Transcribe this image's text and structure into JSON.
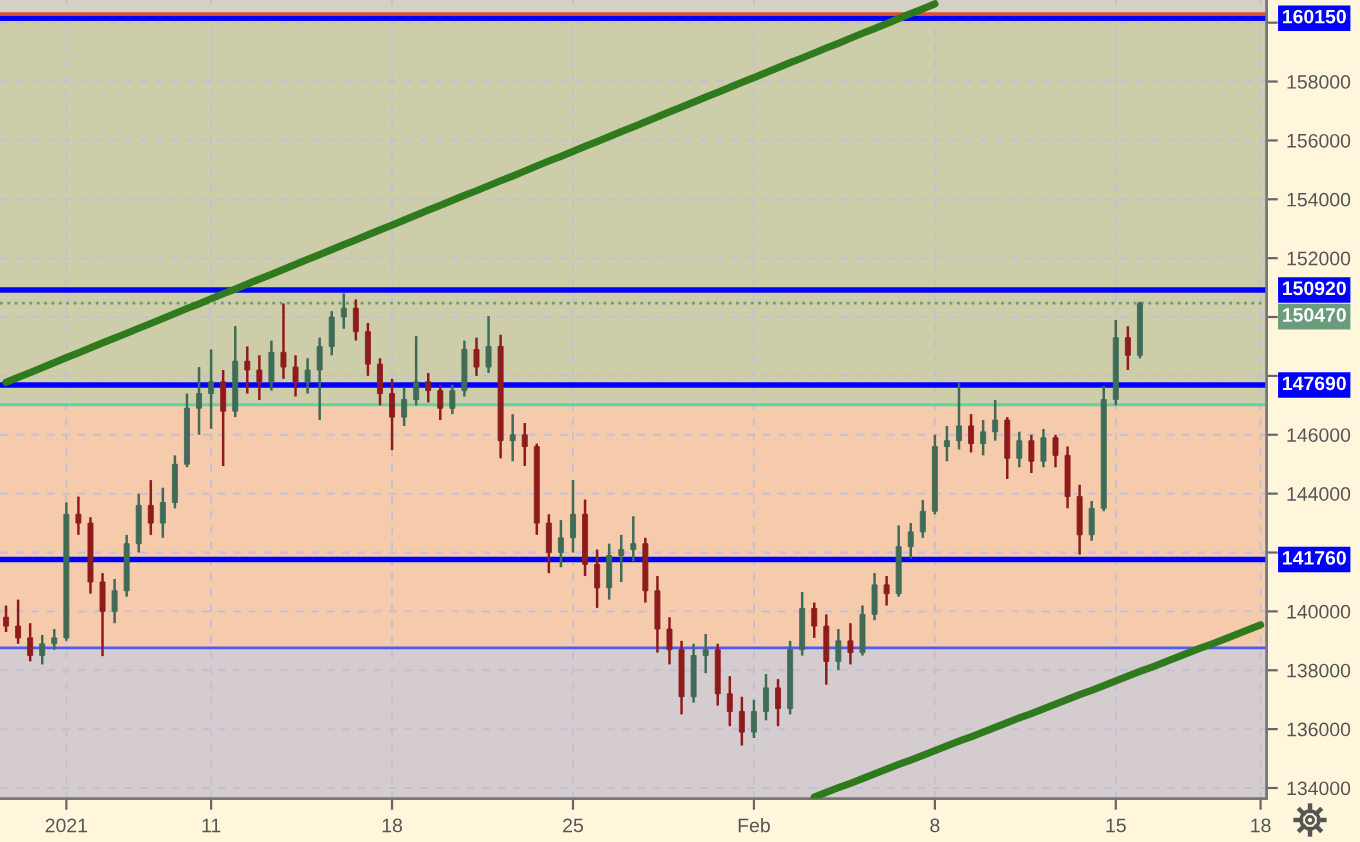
{
  "chart_data": {
    "type": "candlestick",
    "categories": [
      null,
      null,
      null,
      null,
      null,
      "2021",
      null,
      null,
      null,
      null,
      null,
      null,
      null,
      null,
      null,
      null,
      null,
      "11",
      null,
      null,
      null,
      null,
      null,
      null,
      null,
      null,
      null,
      null,
      null,
      null,
      null,
      null,
      "18",
      null,
      null,
      null,
      null,
      null,
      null,
      null,
      null,
      null,
      null,
      null,
      null,
      null,
      null,
      "25",
      null,
      null,
      null,
      null,
      null,
      null,
      null,
      null,
      null,
      null,
      null,
      null,
      null,
      null,
      "Feb",
      null,
      null,
      null,
      null,
      null,
      null,
      null,
      null,
      null,
      null,
      null,
      null,
      null,
      null,
      "8",
      null,
      null,
      null,
      null,
      null,
      null,
      null,
      null,
      null,
      null,
      null,
      null,
      null,
      null,
      "15",
      null,
      null,
      null,
      null,
      null,
      null,
      null,
      null,
      null,
      null,
      null,
      "18"
    ],
    "ohlc": [
      [
        139800,
        140200,
        139300,
        139500
      ],
      [
        139500,
        140400,
        138900,
        139100
      ],
      [
        139100,
        139600,
        138300,
        138500
      ],
      [
        138500,
        139200,
        138200,
        138900
      ],
      [
        138900,
        139400,
        138700,
        139100
      ],
      [
        139100,
        143700,
        139000,
        143300
      ],
      [
        143300,
        143900,
        142600,
        143000
      ],
      [
        143000,
        143200,
        140600,
        141000
      ],
      [
        141000,
        141300,
        138480,
        140000
      ],
      [
        140000,
        141100,
        139600,
        140700
      ],
      [
        140700,
        142600,
        140500,
        142300
      ],
      [
        142300,
        144000,
        142000,
        143600
      ],
      [
        143600,
        144460,
        142600,
        143000
      ],
      [
        143000,
        144200,
        142500,
        143700
      ],
      [
        143700,
        145300,
        143500,
        145000
      ],
      [
        145000,
        147400,
        144900,
        146900
      ],
      [
        146900,
        148300,
        146000,
        147400
      ],
      [
        147400,
        148900,
        146200,
        147800
      ],
      [
        147800,
        148200,
        144940,
        146800
      ],
      [
        146800,
        149690,
        146600,
        148500
      ],
      [
        148500,
        149000,
        147400,
        148200
      ],
      [
        148200,
        148700,
        147180,
        147800
      ],
      [
        147800,
        149200,
        147500,
        148800
      ],
      [
        148800,
        150460,
        147900,
        148300
      ],
      [
        148300,
        148700,
        147300,
        147800
      ],
      [
        147800,
        148600,
        147400,
        148200
      ],
      [
        148200,
        149300,
        146500,
        149000
      ],
      [
        149000,
        150200,
        148700,
        150000
      ],
      [
        150000,
        150800,
        149600,
        150300
      ],
      [
        150300,
        150600,
        149200,
        149500
      ],
      [
        149500,
        149800,
        148000,
        148400
      ],
      [
        148400,
        148600,
        147000,
        147400
      ],
      [
        147400,
        147900,
        145480,
        146600
      ],
      [
        146600,
        147600,
        146300,
        147200
      ],
      [
        147200,
        149350,
        147000,
        147800
      ],
      [
        147800,
        148100,
        147100,
        147500
      ],
      [
        147500,
        147700,
        146500,
        146900
      ],
      [
        146900,
        147700,
        146700,
        147500
      ],
      [
        147500,
        149200,
        147300,
        148900
      ],
      [
        148900,
        149300,
        148000,
        148300
      ],
      [
        148300,
        150030,
        148100,
        149000
      ],
      [
        149000,
        149400,
        145200,
        145800
      ],
      [
        145800,
        146700,
        145100,
        146000
      ],
      [
        146000,
        146400,
        144940,
        145600
      ],
      [
        145600,
        145700,
        142600,
        143000
      ],
      [
        143000,
        143300,
        141300,
        142000
      ],
      [
        142000,
        143100,
        141500,
        142500
      ],
      [
        142500,
        144460,
        142000,
        143300
      ],
      [
        143300,
        143800,
        141200,
        141600
      ],
      [
        141600,
        142100,
        140120,
        140800
      ],
      [
        140800,
        142300,
        140400,
        141900
      ],
      [
        141900,
        142600,
        141000,
        142100
      ],
      [
        142100,
        143230,
        141700,
        142300
      ],
      [
        142300,
        142500,
        140300,
        140700
      ],
      [
        140700,
        141200,
        138600,
        139400
      ],
      [
        139400,
        139800,
        138200,
        138700
      ],
      [
        138700,
        139000,
        136500,
        137100
      ],
      [
        137100,
        138900,
        136900,
        138500
      ],
      [
        138500,
        139230,
        137900,
        138700
      ],
      [
        138700,
        138900,
        136800,
        137200
      ],
      [
        137200,
        137800,
        136100,
        136600
      ],
      [
        136600,
        137100,
        135440,
        135900
      ],
      [
        135900,
        137000,
        135700,
        136600
      ],
      [
        136600,
        137870,
        136300,
        137400
      ],
      [
        137400,
        137700,
        136100,
        136700
      ],
      [
        136700,
        139000,
        136500,
        138700
      ],
      [
        138700,
        140660,
        138500,
        140100
      ],
      [
        140100,
        140300,
        139100,
        139500
      ],
      [
        139500,
        139900,
        137510,
        138300
      ],
      [
        138300,
        139400,
        138000,
        139000
      ],
      [
        139000,
        139600,
        138200,
        138600
      ],
      [
        138600,
        140200,
        138500,
        139900
      ],
      [
        139900,
        141300,
        139700,
        140900
      ],
      [
        140900,
        141200,
        140200,
        140600
      ],
      [
        140600,
        142920,
        140500,
        142200
      ],
      [
        142200,
        143000,
        141800,
        142700
      ],
      [
        142700,
        143780,
        142500,
        143400
      ],
      [
        143400,
        146000,
        143300,
        145600
      ],
      [
        145600,
        146300,
        145100,
        145800
      ],
      [
        145800,
        147760,
        145500,
        146300
      ],
      [
        146300,
        146700,
        145400,
        145700
      ],
      [
        145700,
        146500,
        145300,
        146100
      ],
      [
        146100,
        147180,
        145800,
        146500
      ],
      [
        146500,
        146600,
        144500,
        145200
      ],
      [
        145200,
        146100,
        144900,
        145800
      ],
      [
        145800,
        146000,
        144700,
        145100
      ],
      [
        145100,
        146200,
        144900,
        145900
      ],
      [
        145900,
        146000,
        144900,
        145300
      ],
      [
        145300,
        145600,
        143500,
        143900
      ],
      [
        143900,
        144300,
        141930,
        142600
      ],
      [
        142600,
        143750,
        142400,
        143500
      ],
      [
        143500,
        147660,
        143400,
        147200
      ],
      [
        147200,
        149900,
        147000,
        149300
      ],
      [
        149300,
        149690,
        148200,
        148700
      ],
      [
        148700,
        150520,
        148600,
        150470
      ],
      null,
      null,
      null,
      null,
      null,
      null,
      null,
      null,
      null,
      null
    ],
    "colors": [
      "#8e1c1c",
      "#8e1c1c",
      "#8e1c1c",
      "#3f6b57",
      "#3f6b57",
      "#3f6b57",
      "#8e1c1c",
      "#8e1c1c",
      "#8e1c1c",
      "#3f6b57",
      "#3f6b57",
      "#3f6b57",
      "#8e1c1c",
      "#3f6b57",
      "#3f6b57",
      "#3f6b57",
      "#3f6b57",
      "#3f6b57",
      "#8e1c1c",
      "#3f6b57",
      "#8e1c1c",
      "#8e1c1c",
      "#3f6b57",
      "#8e1c1c",
      "#8e1c1c",
      "#3f6b57",
      "#3f6b57",
      "#3f6b57",
      "#3f6b57",
      "#8e1c1c",
      "#8e1c1c",
      "#8e1c1c",
      "#8e1c1c",
      "#3f6b57",
      "#3f6b57",
      "#8e1c1c",
      "#8e1c1c",
      "#3f6b57",
      "#3f6b57",
      "#8e1c1c",
      "#3f6b57",
      "#8e1c1c",
      "#3f6b57",
      "#8e1c1c",
      "#8e1c1c",
      "#8e1c1c",
      "#3f6b57",
      "#3f6b57",
      "#8e1c1c",
      "#8e1c1c",
      "#3f6b57",
      "#3f6b57",
      "#3f6b57",
      "#8e1c1c",
      "#8e1c1c",
      "#8e1c1c",
      "#8e1c1c",
      "#3f6b57",
      "#3f6b57",
      "#8e1c1c",
      "#8e1c1c",
      "#8e1c1c",
      "#3f6b57",
      "#3f6b57",
      "#8e1c1c",
      "#3f6b57",
      "#3f6b57",
      "#8e1c1c",
      "#8e1c1c",
      "#3f6b57",
      "#8e1c1c",
      "#3f6b57",
      "#3f6b57",
      "#8e1c1c",
      "#3f6b57",
      "#3f6b57",
      "#3f6b57",
      "#3f6b57",
      "#3f6b57",
      "#3f6b57",
      "#8e1c1c",
      "#3f6b57",
      "#3f6b57",
      "#8e1c1c",
      "#3f6b57",
      "#8e1c1c",
      "#3f6b57",
      "#8e1c1c",
      "#8e1c1c",
      "#8e1c1c",
      "#3f6b57",
      "#3f6b57",
      "#3f6b57",
      "#8e1c1c",
      "#3f6b57",
      null,
      null,
      null,
      null,
      null,
      null,
      null,
      null,
      null,
      null
    ],
    "series": [
      {
        "type": "line",
        "color": "#2f7a1c",
        "values": [
          147780,
          147950,
          148110,
          148280,
          148450,
          148620,
          148780,
          148950,
          149120,
          149280,
          149450,
          149620,
          149780,
          149950,
          150120,
          150290,
          150450,
          150620,
          150790,
          150950,
          151120,
          151290,
          151450,
          151620,
          151790,
          151960,
          152120,
          152290,
          152460,
          152620,
          152790,
          152960,
          153120,
          153290,
          153460,
          153630,
          153790,
          153960,
          154130,
          154290,
          154460,
          154630,
          154790,
          154960,
          155130,
          155300,
          155460,
          155630,
          155800,
          155960,
          156130,
          156300,
          156460,
          156630,
          156800,
          156970,
          157130,
          157300,
          157470,
          157630,
          157800,
          157970,
          158130,
          158300,
          158470,
          158640,
          158800,
          158970,
          159140,
          159300,
          159470,
          159640,
          159800,
          159970,
          160140,
          160310,
          160470,
          160640,
          null,
          null,
          null,
          null,
          null,
          null,
          null,
          null,
          null,
          null,
          null,
          null,
          null,
          null,
          null,
          null,
          null,
          null,
          null,
          null,
          null,
          null,
          null,
          null,
          null,
          null,
          null
        ]
      },
      {
        "type": "line",
        "color": "#2f7a1c",
        "values": [
          null,
          null,
          null,
          null,
          null,
          null,
          null,
          null,
          null,
          null,
          null,
          null,
          null,
          null,
          null,
          null,
          null,
          null,
          null,
          null,
          null,
          null,
          null,
          null,
          null,
          null,
          null,
          null,
          null,
          null,
          null,
          null,
          null,
          null,
          null,
          null,
          null,
          null,
          null,
          null,
          null,
          null,
          null,
          null,
          null,
          null,
          null,
          null,
          null,
          null,
          null,
          null,
          null,
          null,
          null,
          null,
          null,
          null,
          null,
          null,
          null,
          null,
          null,
          null,
          null,
          null,
          null,
          133690,
          133850,
          134010,
          134160,
          134320,
          134480,
          134640,
          134800,
          134950,
          135110,
          135270,
          135430,
          135590,
          135740,
          135900,
          136060,
          136220,
          136380,
          136530,
          136690,
          136850,
          137010,
          137170,
          137320,
          137480,
          137640,
          137800,
          137960,
          138110,
          138270,
          138430,
          138590,
          138750,
          138900,
          139060,
          139220,
          139380,
          139540
        ]
      }
    ],
    "ylim": [
      133640,
      160770
    ],
    "yticks": [
      134000,
      136000,
      138000,
      140000,
      {
        "value": 142000,
        "label": null
      },
      144000,
      146000,
      {
        "value": 148000,
        "label": null
      },
      {
        "value": 150000,
        "label": null
      },
      152000,
      154000,
      156000,
      158000,
      {
        "value": 160000,
        "label": null
      }
    ],
    "grid": true,
    "bands": [
      {
        "axis": "y",
        "from": 160310,
        "to": 160770,
        "color": "#d3d0c4"
      },
      {
        "axis": "y",
        "from": 147020,
        "to": 160310,
        "color": "#cdcdaa"
      },
      {
        "axis": "y",
        "from": 138760,
        "to": 147020,
        "color": "#f5cbab"
      },
      {
        "axis": "y",
        "from": 133640,
        "to": 138760,
        "color": "#d5ccd0"
      }
    ],
    "ref_lines": [
      {
        "axis": "y",
        "value": 160310,
        "color": "#e0502e"
      },
      {
        "axis": "y",
        "value": 160150,
        "label": "160150",
        "color": "#0000ff"
      },
      {
        "axis": "y",
        "value": 150920,
        "label": "150920",
        "color": "#0000ff"
      },
      {
        "axis": "y",
        "value": 150470,
        "label": "150470",
        "color": "#6a9c7b",
        "line_style": "dotted"
      },
      {
        "axis": "y",
        "value": 147690,
        "label": "147690",
        "color": "#0000ff"
      },
      {
        "axis": "y",
        "value": 147020,
        "color": "#5fd3a0"
      },
      {
        "axis": "y",
        "value": 141760,
        "label": "141760",
        "color": "#0000ff"
      },
      {
        "axis": "y",
        "value": 138760,
        "color": "#4b5cff"
      }
    ]
  }
}
